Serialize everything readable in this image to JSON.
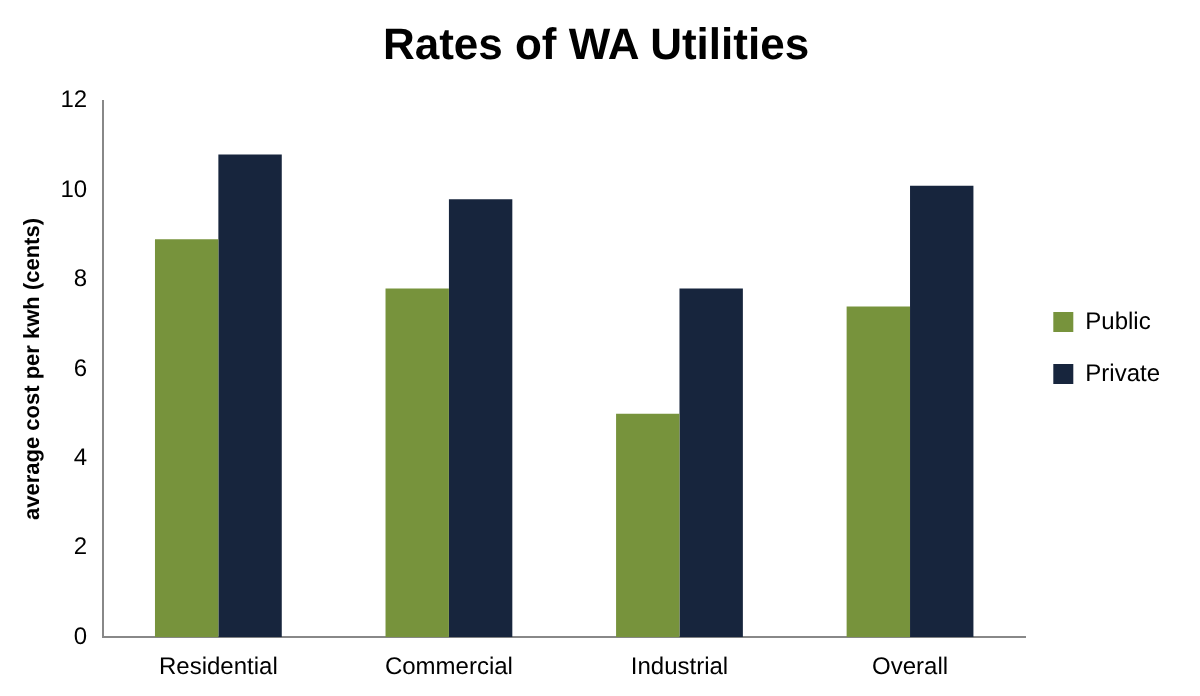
{
  "chart_data": {
    "type": "bar",
    "title": "Rates of WA Utilities",
    "ylabel": "average cost per kwh (cents)",
    "categories": [
      "Residential",
      "Commercial",
      "Industrial",
      "Overall"
    ],
    "series": [
      {
        "name": "Public",
        "color": "#77933c",
        "values": [
          8.9,
          7.8,
          5.0,
          7.4
        ]
      },
      {
        "name": "Private",
        "color": "#17253d",
        "values": [
          10.8,
          9.8,
          7.8,
          10.1
        ]
      }
    ],
    "ylim": [
      0,
      12
    ],
    "yticks": [
      0,
      2,
      4,
      6,
      8,
      10,
      12
    ],
    "grid": false,
    "legend": "right"
  }
}
